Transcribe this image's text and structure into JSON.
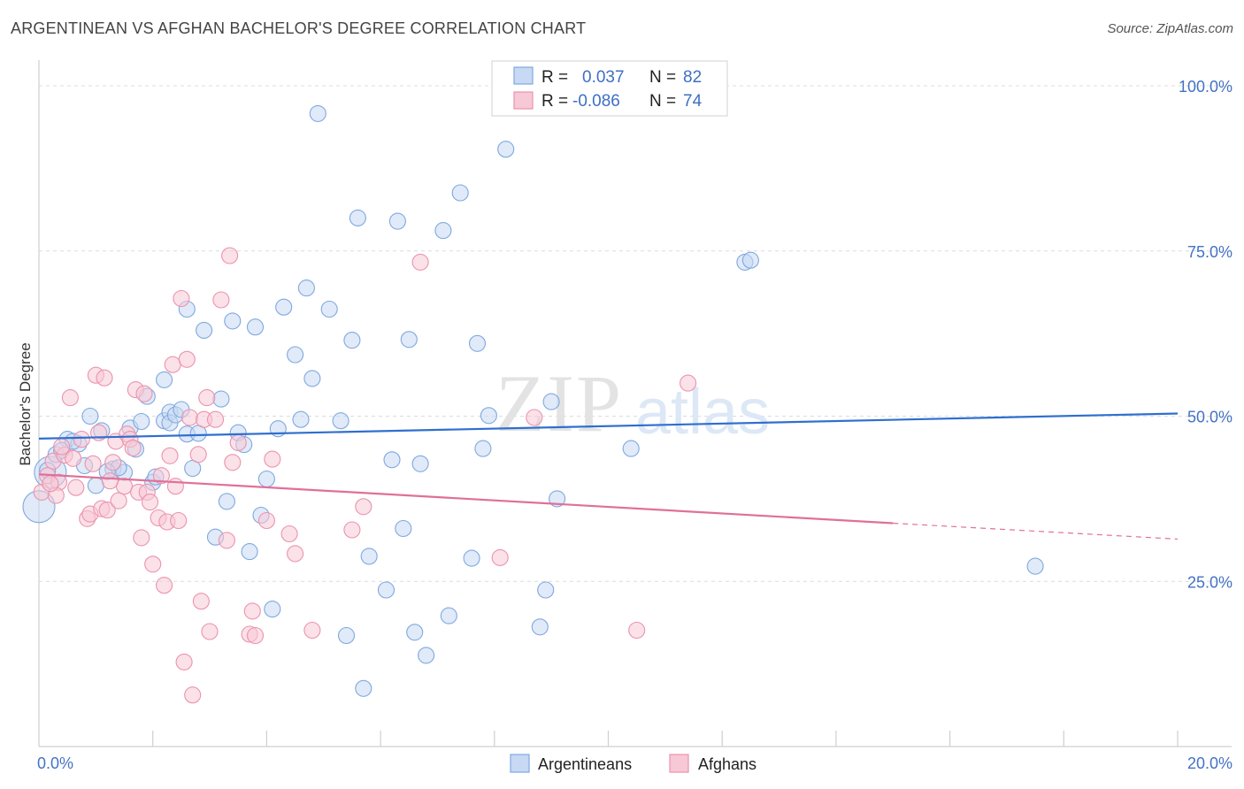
{
  "chart_data": {
    "type": "scatter",
    "title": "ARGENTINEAN VS AFGHAN BACHELOR'S DEGREE CORRELATION CHART",
    "source": "Source: ZipAtlas.com",
    "watermark": {
      "zip": "ZIP",
      "atlas": "atlas"
    },
    "xlabel": "",
    "ylabel": "Bachelor's Degree",
    "xlim": [
      0,
      20
    ],
    "ylim": [
      0,
      100
    ],
    "x_tick_labels": {
      "left": "0.0%",
      "right": "20.0%"
    },
    "y_ticks": [
      {
        "value": 25,
        "label": "25.0%"
      },
      {
        "value": 50,
        "label": "50.0%"
      },
      {
        "value": 75,
        "label": "75.0%"
      },
      {
        "value": 100,
        "label": "100.0%"
      }
    ],
    "legend": {
      "r_label": "R =",
      "n_label": "N =",
      "entries": [
        {
          "r": "0.037",
          "n": "82"
        },
        {
          "r": "-0.086",
          "n": "74"
        }
      ]
    },
    "series": [
      {
        "name": "Argentineans",
        "color": "#7fa8e0",
        "fill": "#c7d9f3",
        "line_color": "#2f6fcf",
        "trend": {
          "x0": 0,
          "y0": 46.6,
          "x1": 20,
          "y1": 50.4
        },
        "points": [
          [
            0.0,
            36.3,
            1
          ],
          [
            0.2,
            41.5,
            1
          ],
          [
            0.3,
            44.2,
            0
          ],
          [
            0.5,
            46.5,
            0
          ],
          [
            0.7,
            45.8,
            0
          ],
          [
            0.9,
            50.0,
            0
          ],
          [
            1.1,
            47.8,
            0
          ],
          [
            1.3,
            42.0,
            0
          ],
          [
            1.5,
            41.5,
            0
          ],
          [
            1.4,
            42.2,
            0
          ],
          [
            1.6,
            48.2,
            0
          ],
          [
            1.7,
            45.0,
            0
          ],
          [
            1.8,
            49.2,
            0
          ],
          [
            1.9,
            53.0,
            0
          ],
          [
            2.0,
            40.0,
            0
          ],
          [
            2.2,
            49.3,
            0
          ],
          [
            2.3,
            50.6,
            0
          ],
          [
            2.2,
            55.5,
            0
          ],
          [
            2.3,
            49.0,
            0
          ],
          [
            2.4,
            50.2,
            0
          ],
          [
            2.5,
            51.0,
            0
          ],
          [
            2.6,
            47.3,
            0
          ],
          [
            2.7,
            42.1,
            0
          ],
          [
            2.8,
            47.4,
            0
          ],
          [
            2.9,
            63.0,
            0
          ],
          [
            2.6,
            66.2,
            0
          ],
          [
            3.2,
            52.6,
            0
          ],
          [
            3.3,
            37.1,
            0
          ],
          [
            3.1,
            31.7,
            0
          ],
          [
            3.4,
            64.4,
            0
          ],
          [
            3.5,
            47.5,
            0
          ],
          [
            3.6,
            45.7,
            0
          ],
          [
            3.7,
            29.5,
            0
          ],
          [
            3.8,
            63.5,
            0
          ],
          [
            3.9,
            35.0,
            0
          ],
          [
            4.0,
            40.5,
            0
          ],
          [
            4.1,
            20.8,
            0
          ],
          [
            4.2,
            48.1,
            0
          ],
          [
            4.3,
            66.5,
            0
          ],
          [
            4.5,
            59.3,
            0
          ],
          [
            4.6,
            49.5,
            0
          ],
          [
            4.7,
            69.4,
            0
          ],
          [
            4.8,
            55.7,
            0
          ],
          [
            4.9,
            95.8,
            0
          ],
          [
            5.1,
            66.2,
            0
          ],
          [
            5.3,
            49.3,
            0
          ],
          [
            5.4,
            16.8,
            0
          ],
          [
            5.5,
            61.5,
            0
          ],
          [
            5.6,
            80.0,
            0
          ],
          [
            5.7,
            8.8,
            0
          ],
          [
            5.8,
            28.8,
            0
          ],
          [
            6.1,
            23.7,
            0
          ],
          [
            6.2,
            43.4,
            0
          ],
          [
            6.3,
            79.5,
            0
          ],
          [
            6.4,
            33.0,
            0
          ],
          [
            6.5,
            61.6,
            0
          ],
          [
            6.6,
            17.3,
            0
          ],
          [
            6.7,
            42.8,
            0
          ],
          [
            6.8,
            13.8,
            0
          ],
          [
            7.1,
            78.1,
            0
          ],
          [
            7.2,
            19.8,
            0
          ],
          [
            7.4,
            83.8,
            0
          ],
          [
            7.6,
            28.5,
            0
          ],
          [
            7.7,
            61.0,
            0
          ],
          [
            7.9,
            50.1,
            0
          ],
          [
            7.8,
            45.1,
            0
          ],
          [
            8.2,
            90.4,
            0
          ],
          [
            8.8,
            18.1,
            0
          ],
          [
            8.9,
            23.7,
            0
          ],
          [
            9.0,
            52.2,
            0
          ],
          [
            9.1,
            37.5,
            0
          ],
          [
            10.4,
            45.1,
            0
          ],
          [
            12.4,
            73.3,
            0
          ],
          [
            12.5,
            73.6,
            0
          ],
          [
            17.5,
            27.3,
            0
          ],
          [
            0.4,
            44.8,
            0
          ],
          [
            0.6,
            46.2,
            0
          ],
          [
            0.8,
            42.5,
            0
          ],
          [
            1.0,
            39.5,
            0
          ],
          [
            0.15,
            41.8,
            0
          ],
          [
            2.05,
            40.8,
            0
          ],
          [
            1.2,
            41.6,
            0
          ]
        ]
      },
      {
        "name": "Afghans",
        "color": "#eb93ae",
        "fill": "#f7c8d6",
        "line_color": "#e07099",
        "trend": {
          "x0": 0,
          "y0": 41.2,
          "x1": 15,
          "y1": 33.8
        },
        "trend_dashed": {
          "x0": 15,
          "y0": 33.8,
          "x1": 20,
          "y1": 31.4
        },
        "points": [
          [
            0.05,
            38.5,
            0
          ],
          [
            0.15,
            41.0,
            0
          ],
          [
            0.25,
            43.2,
            0
          ],
          [
            0.35,
            40.0,
            0
          ],
          [
            0.45,
            44.1,
            0
          ],
          [
            0.55,
            52.8,
            0
          ],
          [
            0.65,
            39.2,
            0
          ],
          [
            0.75,
            46.5,
            0
          ],
          [
            0.85,
            34.5,
            0
          ],
          [
            0.9,
            35.2,
            0
          ],
          [
            1.0,
            56.2,
            0
          ],
          [
            1.05,
            47.5,
            0
          ],
          [
            1.1,
            36.0,
            0
          ],
          [
            1.15,
            55.8,
            0
          ],
          [
            1.2,
            35.8,
            0
          ],
          [
            1.3,
            43.0,
            0
          ],
          [
            1.35,
            46.2,
            0
          ],
          [
            1.4,
            37.2,
            0
          ],
          [
            1.5,
            39.4,
            0
          ],
          [
            1.55,
            47.3,
            0
          ],
          [
            1.6,
            46.5,
            0
          ],
          [
            1.7,
            54.0,
            0
          ],
          [
            1.75,
            38.5,
            0
          ],
          [
            1.8,
            31.6,
            0
          ],
          [
            1.85,
            53.4,
            0
          ],
          [
            1.9,
            38.5,
            0
          ],
          [
            1.95,
            37.0,
            0
          ],
          [
            2.0,
            27.6,
            0
          ],
          [
            2.1,
            34.6,
            0
          ],
          [
            2.15,
            41.0,
            0
          ],
          [
            2.2,
            24.4,
            0
          ],
          [
            2.25,
            34.0,
            0
          ],
          [
            2.3,
            44.0,
            0
          ],
          [
            2.35,
            57.8,
            0
          ],
          [
            2.4,
            39.4,
            0
          ],
          [
            2.45,
            34.2,
            0
          ],
          [
            2.5,
            67.8,
            0
          ],
          [
            2.55,
            12.8,
            0
          ],
          [
            2.6,
            58.6,
            0
          ],
          [
            2.65,
            49.8,
            0
          ],
          [
            2.7,
            7.8,
            0
          ],
          [
            2.8,
            44.2,
            0
          ],
          [
            2.85,
            22.0,
            0
          ],
          [
            2.9,
            49.5,
            0
          ],
          [
            2.95,
            52.8,
            0
          ],
          [
            3.0,
            17.4,
            0
          ],
          [
            3.1,
            49.5,
            0
          ],
          [
            3.2,
            67.6,
            0
          ],
          [
            3.3,
            31.2,
            0
          ],
          [
            3.35,
            74.3,
            0
          ],
          [
            3.4,
            43.0,
            0
          ],
          [
            3.5,
            46.0,
            0
          ],
          [
            3.7,
            17.0,
            0
          ],
          [
            3.75,
            20.5,
            0
          ],
          [
            3.8,
            16.8,
            0
          ],
          [
            4.0,
            34.2,
            0
          ],
          [
            4.1,
            43.5,
            0
          ],
          [
            4.4,
            32.2,
            0
          ],
          [
            4.5,
            29.2,
            0
          ],
          [
            4.8,
            17.6,
            0
          ],
          [
            5.5,
            32.8,
            0
          ],
          [
            5.7,
            36.3,
            0
          ],
          [
            6.7,
            73.3,
            0
          ],
          [
            8.1,
            28.6,
            0
          ],
          [
            8.7,
            49.8,
            0
          ],
          [
            10.5,
            17.6,
            0
          ],
          [
            11.4,
            55.0,
            0
          ],
          [
            0.3,
            38.0,
            0
          ],
          [
            0.95,
            42.8,
            0
          ],
          [
            1.65,
            45.2,
            0
          ],
          [
            0.2,
            39.8,
            0
          ],
          [
            0.6,
            43.6,
            0
          ],
          [
            1.25,
            40.2,
            0
          ],
          [
            0.4,
            45.4,
            0
          ]
        ]
      }
    ]
  }
}
